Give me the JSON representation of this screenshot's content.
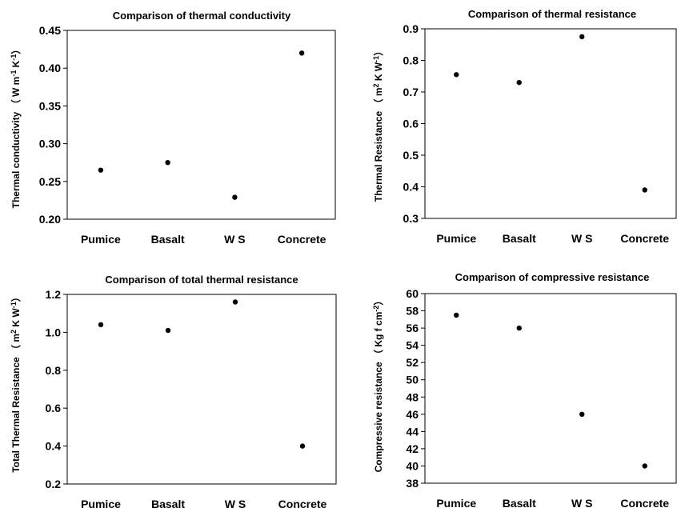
{
  "chart_data": [
    {
      "type": "scatter",
      "title": "Comparison of thermal conductivity",
      "ylabel": "Thermal conductivity （ W m-1 K-1）",
      "categories": [
        "Pumice",
        "Basalt",
        "W S",
        "Concrete"
      ],
      "values": [
        0.265,
        0.275,
        0.229,
        0.42
      ],
      "ylim": [
        0.2,
        0.45
      ],
      "yticks": [
        "0.20",
        "0.25",
        "0.30",
        "0.35",
        "0.40",
        "0.45"
      ],
      "grid": false
    },
    {
      "type": "scatter",
      "title": "Comparison of thermal resistance",
      "ylabel": "Thermal Resistance （ m2 K W-1）",
      "categories": [
        "Pumice",
        "Basalt",
        "W S",
        "Concrete"
      ],
      "values": [
        0.755,
        0.73,
        0.875,
        0.39
      ],
      "ylim": [
        0.3,
        0.9
      ],
      "yticks": [
        "0.3",
        "0.4",
        "0.5",
        "0.6",
        "0.7",
        "0.8",
        "0.9"
      ],
      "grid": false
    },
    {
      "type": "scatter",
      "title": "Comparison of total thermal resistance",
      "ylabel": "Total Thermal Resistance （ m2 K W-1）",
      "categories": [
        "Pumice",
        "Basalt",
        "W S",
        "Concrete"
      ],
      "values": [
        1.04,
        1.01,
        1.16,
        0.4
      ],
      "ylim": [
        0.2,
        1.2
      ],
      "yticks": [
        "0.2",
        "0.4",
        "0.6",
        "0.8",
        "1.0",
        "1.2"
      ],
      "grid": false
    },
    {
      "type": "scatter",
      "title": "Comparison of compressive resistance",
      "ylabel": "Compressive resistance （ Kg f cm-2）",
      "categories": [
        "Pumice",
        "Basalt",
        "W S",
        "Concrete"
      ],
      "values": [
        57.5,
        56,
        46,
        40
      ],
      "ylim": [
        38,
        60
      ],
      "yticks": [
        "38",
        "40",
        "42",
        "44",
        "46",
        "48",
        "50",
        "52",
        "54",
        "56",
        "58",
        "60"
      ],
      "grid": false
    }
  ]
}
